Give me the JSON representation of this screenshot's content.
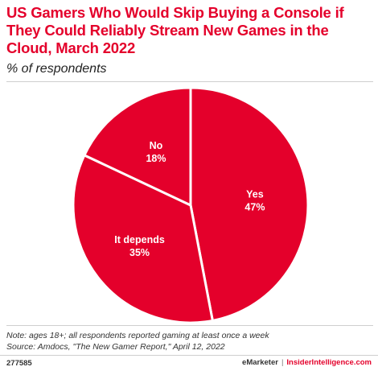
{
  "header": {
    "title": "US Gamers Who Would Skip Buying a Console if They Could Reliably Stream New Games in the Cloud, March 2022",
    "subtitle": "% of respondents"
  },
  "chart_data": {
    "type": "pie",
    "title": "US Gamers Who Would Skip Buying a Console if They Could Reliably Stream New Games in the Cloud, March 2022",
    "subtitle": "% of respondents",
    "start_angle_deg": 0,
    "direction": "clockwise",
    "slices": [
      {
        "label": "Yes",
        "value": 47,
        "display": "47%"
      },
      {
        "label": "It depends",
        "value": 35,
        "display": "35%"
      },
      {
        "label": "No",
        "value": 18,
        "display": "18%"
      }
    ],
    "colors": {
      "slice": "#e4002b",
      "border": "#ffffff"
    }
  },
  "footer": {
    "note": "Note: ages 18+; all respondents reported gaming at least once a week",
    "source": "Source: Amdocs, \"The New Gamer Report,\" April 12, 2022",
    "chart_id": "277585",
    "brand_left": "eMarketer",
    "separator": "|",
    "brand_right": "InsiderIntelligence.com"
  }
}
